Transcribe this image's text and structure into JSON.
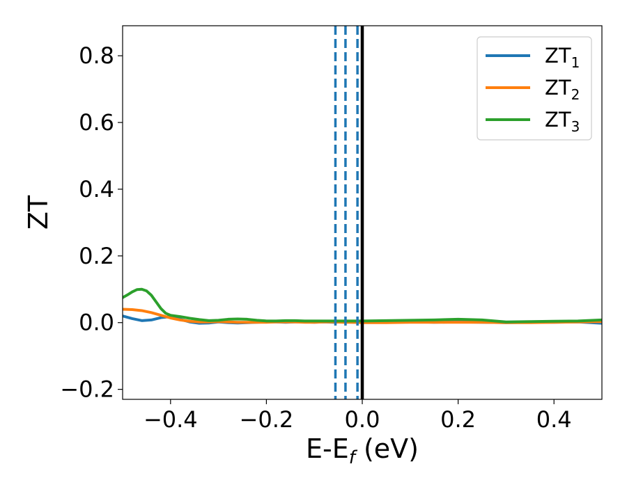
{
  "chart_data": {
    "type": "line",
    "title": "",
    "xlabel_main": "E-E",
    "xlabel_sub": "f",
    "xlabel_tail": " (eV)",
    "ylabel": "ZT",
    "xlim": [
      -0.5,
      0.5
    ],
    "ylim": [
      -0.23,
      0.89
    ],
    "xticks": [
      -0.4,
      -0.2,
      0.0,
      0.2,
      0.4
    ],
    "xtick_labels": [
      "−0.4",
      "−0.2",
      "0.0",
      "0.2",
      "0.4"
    ],
    "yticks": [
      -0.2,
      0.0,
      0.2,
      0.4,
      0.6,
      0.8
    ],
    "ytick_labels": [
      "−0.2",
      "0.0",
      "0.2",
      "0.4",
      "0.6",
      "0.8"
    ],
    "grid": false,
    "legend_position": "top-right",
    "vlines_dashed": {
      "color": "#1f77b4",
      "x": [
        -0.056,
        -0.035,
        -0.01
      ]
    },
    "vline_solid": {
      "color": "#000000",
      "x": 0.0
    },
    "series": [
      {
        "name": "ZT",
        "sub": "1",
        "color": "#1f77b4",
        "x": [
          -0.5,
          -0.48,
          -0.46,
          -0.44,
          -0.42,
          -0.4,
          -0.38,
          -0.36,
          -0.34,
          -0.32,
          -0.3,
          -0.28,
          -0.26,
          -0.24,
          -0.22,
          -0.2,
          -0.18,
          -0.16,
          -0.14,
          -0.12,
          -0.1,
          -0.08,
          -0.06,
          -0.04,
          -0.02,
          0.0,
          0.05,
          0.1,
          0.15,
          0.2,
          0.25,
          0.3,
          0.35,
          0.4,
          0.45,
          0.5
        ],
        "y": [
          0.02,
          0.012,
          0.006,
          0.008,
          0.015,
          0.018,
          0.01,
          0.002,
          -0.002,
          -0.001,
          0.002,
          0.0,
          -0.001,
          0.0,
          0.001,
          0.002,
          0.002,
          0.001,
          0.002,
          0.002,
          0.001,
          0.002,
          0.001,
          0.002,
          0.001,
          0.001,
          0.001,
          0.003,
          0.001,
          0.002,
          0.001,
          0.0,
          0.001,
          0.001,
          0.002,
          -0.002
        ]
      },
      {
        "name": "ZT",
        "sub": "2",
        "color": "#ff7f0e",
        "x": [
          -0.5,
          -0.48,
          -0.46,
          -0.44,
          -0.42,
          -0.4,
          -0.38,
          -0.36,
          -0.34,
          -0.32,
          -0.3,
          -0.28,
          -0.26,
          -0.24,
          -0.22,
          -0.2,
          -0.18,
          -0.16,
          -0.14,
          -0.12,
          -0.1,
          -0.08,
          -0.06,
          -0.04,
          -0.02,
          0.0,
          0.05,
          0.1,
          0.15,
          0.2,
          0.25,
          0.3,
          0.35,
          0.4,
          0.45,
          0.5
        ],
        "y": [
          0.04,
          0.039,
          0.036,
          0.03,
          0.022,
          0.014,
          0.008,
          0.004,
          0.002,
          0.002,
          0.003,
          0.002,
          0.001,
          0.001,
          0.001,
          0.001,
          0.002,
          0.002,
          0.002,
          0.001,
          0.001,
          0.002,
          0.002,
          0.001,
          0.001,
          0.0,
          0.0,
          0.001,
          0.001,
          0.001,
          0.001,
          0.0,
          0.0,
          0.001,
          0.002,
          0.003
        ]
      },
      {
        "name": "ZT",
        "sub": "3",
        "color": "#2ca02c",
        "x": [
          -0.5,
          -0.49,
          -0.48,
          -0.47,
          -0.46,
          -0.45,
          -0.44,
          -0.43,
          -0.42,
          -0.41,
          -0.4,
          -0.38,
          -0.36,
          -0.34,
          -0.32,
          -0.3,
          -0.28,
          -0.26,
          -0.24,
          -0.22,
          -0.2,
          -0.18,
          -0.16,
          -0.14,
          -0.12,
          -0.1,
          -0.08,
          -0.06,
          -0.04,
          -0.02,
          0.0,
          0.05,
          0.1,
          0.15,
          0.2,
          0.25,
          0.3,
          0.35,
          0.4,
          0.45,
          0.5
        ],
        "y": [
          0.075,
          0.083,
          0.092,
          0.099,
          0.1,
          0.095,
          0.082,
          0.062,
          0.042,
          0.028,
          0.022,
          0.018,
          0.013,
          0.009,
          0.006,
          0.007,
          0.01,
          0.011,
          0.01,
          0.007,
          0.005,
          0.005,
          0.006,
          0.006,
          0.005,
          0.005,
          0.005,
          0.005,
          0.005,
          0.005,
          0.005,
          0.006,
          0.007,
          0.008,
          0.01,
          0.008,
          0.002,
          0.003,
          0.004,
          0.005,
          0.008
        ]
      }
    ]
  }
}
